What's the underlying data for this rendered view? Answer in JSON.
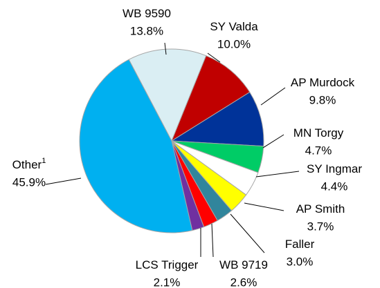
{
  "chart_data": {
    "type": "pie",
    "categories": [
      "WB 9590",
      "SY Valda",
      "AP Murdock",
      "MN Torgy",
      "SY Ingmar",
      "AP Smith",
      "Faller",
      "WB 9719",
      "LCS Trigger",
      "Other"
    ],
    "category_footnotes": [
      null,
      null,
      null,
      null,
      null,
      null,
      null,
      null,
      null,
      "1"
    ],
    "values": [
      13.8,
      10.0,
      9.8,
      4.7,
      4.4,
      3.7,
      3.0,
      2.6,
      2.1,
      45.9
    ],
    "value_labels": [
      "13.8%",
      "10.0%",
      "9.8%",
      "4.7%",
      "4.4%",
      "3.7%",
      "3.0%",
      "2.6%",
      "2.1%",
      "45.9%"
    ],
    "colors": [
      "#daeef3",
      "#c00000",
      "#003399",
      "#00cc66",
      "#ffffff",
      "#ffff00",
      "#31859c",
      "#ff0000",
      "#7030a0",
      "#00b0f0"
    ]
  }
}
